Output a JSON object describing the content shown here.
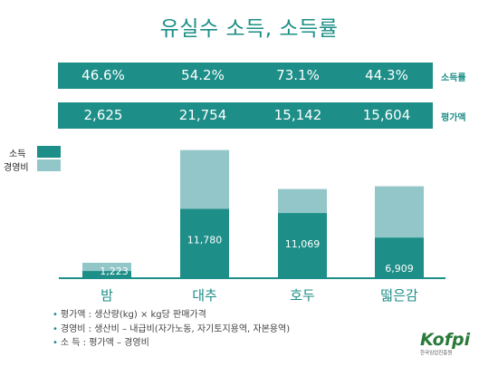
{
  "title": "유실수 소득, 소득률",
  "colors": {
    "teal": "#1d8e88",
    "light": "#93c6c8",
    "title": "#1b8f86"
  },
  "bands": [
    {
      "label": "소득률",
      "values": [
        "46.6%",
        "54.2%",
        "73.1%",
        "44.3%"
      ]
    },
    {
      "label": "평가액",
      "values": [
        "2,625",
        "21,754",
        "15,142",
        "15,604"
      ]
    }
  ],
  "legend": [
    {
      "name": "소득",
      "color": "#1d8e88"
    },
    {
      "name": "경영비",
      "color": "#93c6c8"
    }
  ],
  "chart_data": {
    "type": "bar",
    "stacked": true,
    "categories": [
      "밤",
      "대추",
      "호두",
      "떫은감"
    ],
    "series": [
      {
        "name": "소득",
        "values": [
          1223,
          11780,
          11069,
          6909
        ]
      },
      {
        "name": "경영비",
        "values": [
          1402,
          9974,
          4073,
          8695
        ]
      }
    ],
    "data_labels": [
      "1,223",
      "11,780",
      "11,069",
      "6,909"
    ],
    "ylim": [
      0,
      22000
    ]
  },
  "notes": [
    "평가액 : 생산량(kg) × kg당 판매가격",
    "경영비 : 생산비 – 내급비(자가노동, 자기토지용역, 자본용역)",
    "소    득 : 평가액 – 경영비"
  ],
  "logo": {
    "main": "Kofpi",
    "sub": "한국임업진흥원"
  }
}
